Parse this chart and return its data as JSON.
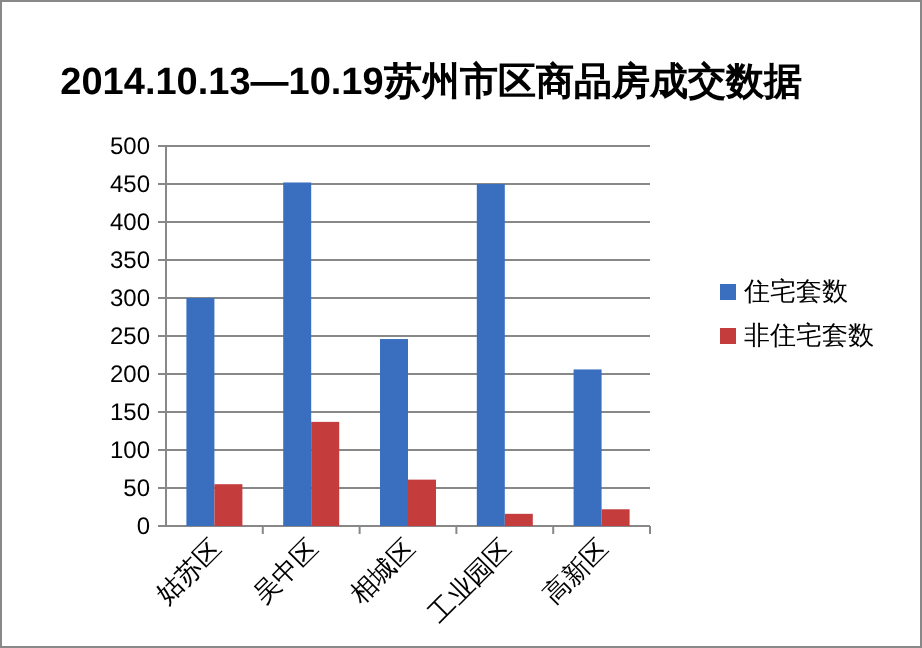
{
  "chart_data": {
    "type": "bar",
    "title": "2014.10.13—10.19苏州市区商品房成交数据",
    "categories": [
      "姑苏区",
      "吴中区",
      "相城区",
      "工业园区",
      "高新区"
    ],
    "series": [
      {
        "name": "住宅套数",
        "color": "#3a6fc0",
        "values": [
          300,
          452,
          246,
          450,
          206
        ]
      },
      {
        "name": "非住宅套数",
        "color": "#c43c3c",
        "values": [
          55,
          137,
          61,
          16,
          22
        ]
      }
    ],
    "ylim": [
      0,
      500
    ],
    "yticks": [
      0,
      50,
      100,
      150,
      200,
      250,
      300,
      350,
      400,
      450,
      500
    ],
    "grid": "y",
    "legend": "right"
  }
}
